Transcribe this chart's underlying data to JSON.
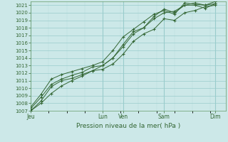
{
  "title": "",
  "xlabel": "Pression niveau de la mer( hPa )",
  "bg_color": "#cce8e8",
  "grid_major_color": "#99cccc",
  "grid_minor_color": "#b8dede",
  "line_color": "#336633",
  "marker_color": "#336633",
  "ylim": [
    1007,
    1021.5
  ],
  "yticks": [
    1007,
    1008,
    1009,
    1010,
    1011,
    1012,
    1013,
    1014,
    1015,
    1016,
    1017,
    1018,
    1019,
    1020,
    1021
  ],
  "xtick_labels": [
    "Jeu",
    "",
    "Lun",
    "Ven",
    "",
    "Sam",
    "",
    "Dim"
  ],
  "xtick_visible": [
    true,
    false,
    true,
    true,
    false,
    true,
    false,
    true
  ],
  "series": [
    [
      1007.0,
      1008.0,
      1009.3,
      1010.3,
      1011.0,
      1011.6,
      1012.3,
      1012.5,
      1013.2,
      1014.5,
      1016.2,
      1017.2,
      1017.8,
      1019.2,
      1019.0,
      1020.0,
      1020.3,
      1020.8,
      1021.0
    ],
    [
      1007.3,
      1008.8,
      1010.5,
      1011.2,
      1011.7,
      1012.1,
      1012.8,
      1013.0,
      1014.0,
      1015.5,
      1017.2,
      1018.0,
      1019.2,
      1020.0,
      1020.2,
      1021.0,
      1021.0,
      1020.6,
      1021.2
    ],
    [
      1007.5,
      1009.2,
      1011.2,
      1011.8,
      1012.2,
      1012.6,
      1013.0,
      1013.5,
      1015.0,
      1016.8,
      1017.8,
      1018.8,
      1019.8,
      1020.3,
      1019.8,
      1021.3,
      1021.1,
      1021.0,
      1021.5
    ],
    [
      1007.0,
      1008.3,
      1010.2,
      1011.0,
      1011.3,
      1011.8,
      1012.3,
      1013.0,
      1014.0,
      1015.8,
      1017.5,
      1018.0,
      1019.5,
      1020.5,
      1020.0,
      1021.0,
      1021.3,
      1021.0,
      1021.2
    ]
  ],
  "n_points": 19,
  "xmin": 0,
  "xmax": 9.5,
  "major_xtick_pos": [
    0,
    3.5,
    4.5,
    6.5,
    9.0
  ],
  "major_xtick_labels": [
    "Jeu",
    "Lun",
    "Ven",
    "Sam",
    "Dim"
  ]
}
